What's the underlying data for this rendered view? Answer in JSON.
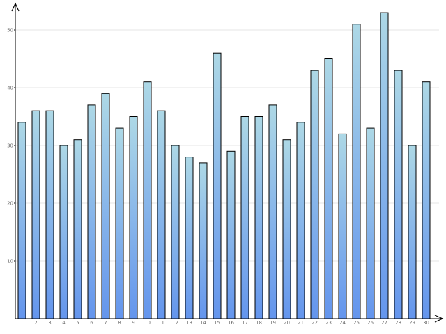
{
  "chart_data": {
    "type": "bar",
    "categories": [
      "1",
      "2",
      "3",
      "4",
      "5",
      "6",
      "7",
      "8",
      "9",
      "10",
      "11",
      "12",
      "13",
      "14",
      "15",
      "16",
      "17",
      "18",
      "19",
      "20",
      "21",
      "22",
      "23",
      "24",
      "25",
      "26",
      "27",
      "28",
      "29",
      "30"
    ],
    "values": [
      34,
      36,
      36,
      30,
      31,
      37,
      39,
      33,
      35,
      41,
      36,
      30,
      28,
      27,
      46,
      29,
      35,
      35,
      37,
      31,
      34,
      43,
      45,
      32,
      51,
      33,
      53,
      43,
      30,
      41
    ],
    "yticks": [
      "0",
      "10",
      "20",
      "30",
      "40",
      "50"
    ],
    "ylim": [
      0,
      55
    ],
    "title": "",
    "xlabel": "",
    "ylabel": "",
    "grid": true,
    "legend": "none",
    "colors": {
      "bar_top": "#add8e6",
      "bar_bottom": "#6495ed",
      "bar_stroke": "#000000",
      "grid": "#e6e6e6",
      "axis": "#000000",
      "tick_text": "#6b6b6b"
    }
  }
}
